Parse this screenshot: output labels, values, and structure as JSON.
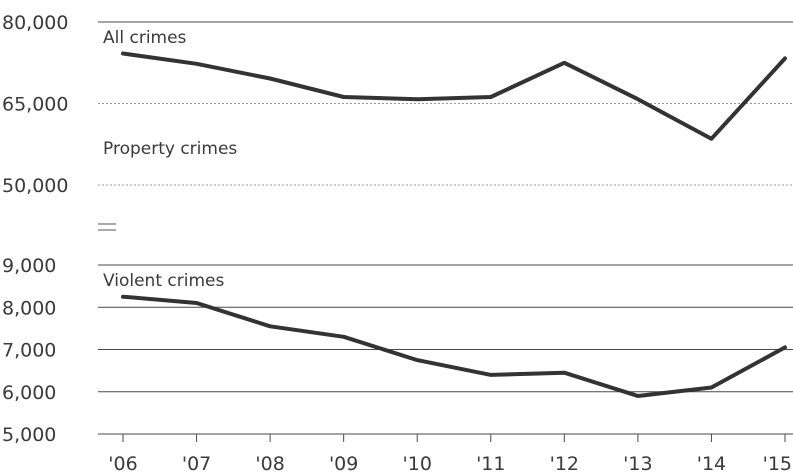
{
  "chart_data": [
    {
      "type": "line",
      "panel": "upper",
      "categories": [
        "'06",
        "'07",
        "'08",
        "'09",
        "'10",
        "'11",
        "'12",
        "'13",
        "'14",
        "'15"
      ],
      "ylim": [
        50000,
        80000
      ],
      "yticks": [
        "80,000",
        "65,000",
        "50,000"
      ],
      "ytick_values": [
        80000,
        65000,
        50000
      ],
      "series": [
        {
          "name": "All crimes",
          "values": [
            74200,
            72300,
            69600,
            66200,
            65800,
            66200,
            72500,
            65800,
            58500,
            73300
          ]
        }
      ],
      "annotations": [
        "Property crimes"
      ]
    },
    {
      "type": "line",
      "panel": "lower",
      "categories": [
        "'06",
        "'07",
        "'08",
        "'09",
        "'10",
        "'11",
        "'12",
        "'13",
        "'14",
        "'15"
      ],
      "ylim": [
        5000,
        9000
      ],
      "yticks": [
        "9,000",
        "8,000",
        "7,000",
        "6,000",
        "5,000"
      ],
      "ytick_values": [
        9000,
        8000,
        7000,
        6000,
        5000
      ],
      "series": [
        {
          "name": "Violent crimes",
          "values": [
            8250,
            8100,
            7550,
            7300,
            6750,
            6400,
            6450,
            5900,
            6100,
            7050
          ]
        }
      ]
    }
  ],
  "colors": {
    "line": "#333333",
    "grid": "#4a4a4a",
    "text": "#3a3a3a"
  }
}
